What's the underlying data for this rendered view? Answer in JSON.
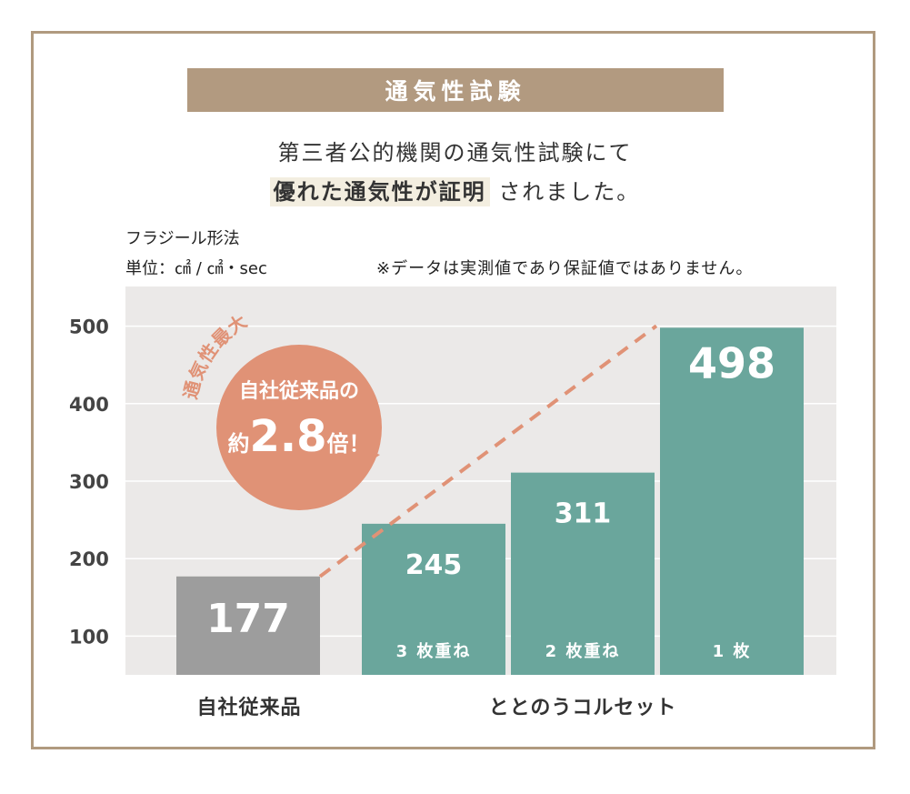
{
  "heading": "通気性試験",
  "intro": {
    "line1": "第三者公的機関の通気性試験にて",
    "line2_highlight": "優れた通気性が証明",
    "line2_rest": "されました。"
  },
  "method_label": "フラジール形法",
  "unit_label": "単位：㎠ / ㎠・sec",
  "note": "※データは実測値であり保証値ではありません。",
  "badge": {
    "arc_text": "通気性最大",
    "line1": "自社従来品の",
    "prefix": "約",
    "multiplier": "2.8",
    "suffix": "倍！"
  },
  "colors": {
    "frame": "#b09a7f",
    "title_bar": "#b29a80",
    "plot_bg": "#ebe9e8",
    "bar_gray": "#9d9d9d",
    "bar_teal": "#6aa69c",
    "accent": "#e09276"
  },
  "chart_data": {
    "type": "bar",
    "ylim": [
      50,
      500
    ],
    "yticks": [
      100,
      200,
      300,
      400,
      500
    ],
    "bars": [
      {
        "value": 177,
        "label": "177",
        "sublabel": "",
        "color": "#9d9d9d"
      },
      {
        "value": 245,
        "label": "245",
        "sublabel": "3 枚重ね",
        "color": "#6aa69c"
      },
      {
        "value": 311,
        "label": "311",
        "sublabel": "2 枚重ね",
        "color": "#6aa69c"
      },
      {
        "value": 498,
        "label": "498",
        "sublabel": "1 枚",
        "color": "#6aa69c"
      }
    ],
    "categories": [
      "自社従来品",
      "ととのうコルセット"
    ]
  }
}
